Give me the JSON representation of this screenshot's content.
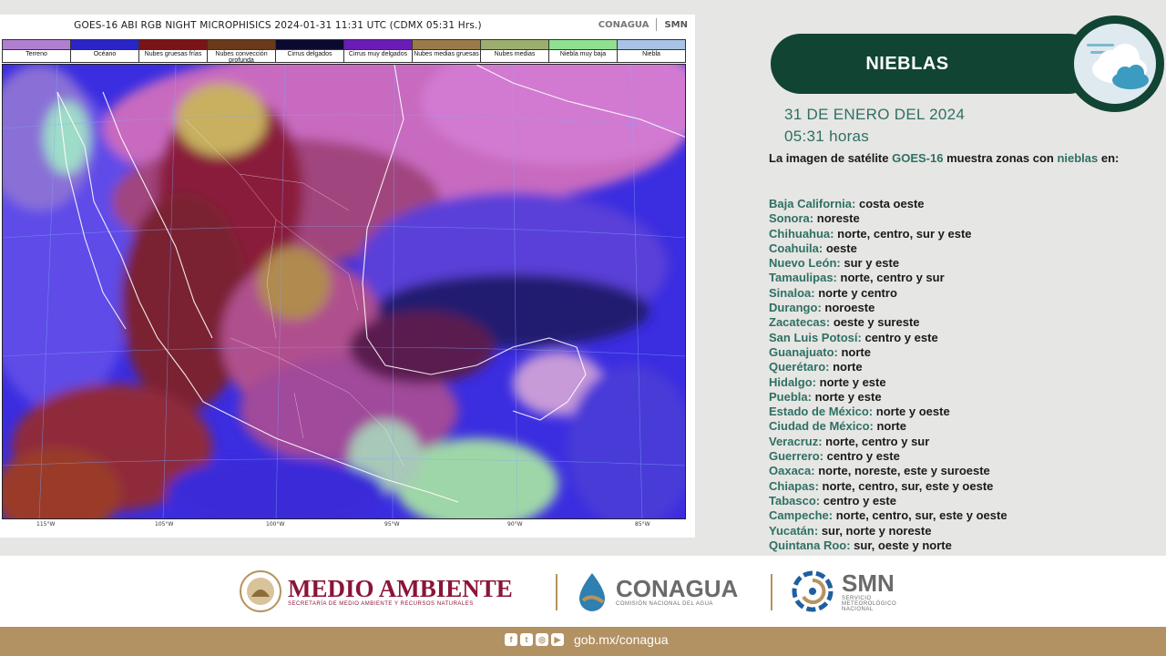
{
  "satellite": {
    "title": "GOES-16 ABI RGB NIGHT MICROPHISICS 2024-01-31 11:31 UTC (CDMX  05:31 Hrs.)",
    "logo_conagua": "CONAGUA",
    "logo_smn": "SMN",
    "legend": [
      {
        "label": "Terreno",
        "color": "#b07fd0"
      },
      {
        "label": "Océano",
        "color": "#2a24c9"
      },
      {
        "label": "Nubes gruesas frías",
        "color": "#7a1417"
      },
      {
        "label": "Nubes convección profunda",
        "color": "#6a3a1a"
      },
      {
        "label": "Cirrus delgados",
        "color": "#0a0a30"
      },
      {
        "label": "Cirrus muy delgados",
        "color": "#6b1cb8"
      },
      {
        "label": "Nubes medias gruesas",
        "color": "#9c7a48"
      },
      {
        "label": "Nubes medias",
        "color": "#9cae6e"
      },
      {
        "label": "Niebla muy baja",
        "color": "#8fe08f"
      },
      {
        "label": "Niebla",
        "color": "#a9c3e6"
      }
    ],
    "longitudes": [
      "115°W",
      "105°W",
      "100°W",
      "95°W",
      "90°W",
      "85°W"
    ]
  },
  "panel": {
    "title": "NIEBLAS",
    "weather_icon": "fog-cloud-icon",
    "date": "31 DE ENERO DEL 2024",
    "time": "05:31 horas",
    "intro_pre": "La imagen de satélite ",
    "intro_sat": "GOES-16",
    "intro_mid": " muestra zonas con ",
    "intro_kw": "nieblas",
    "intro_post": " en:",
    "states": [
      {
        "name": "Baja California:",
        "areas": "costa oeste"
      },
      {
        "name": "Sonora:",
        "areas": "noreste"
      },
      {
        "name": "Chihuahua:",
        "areas": "norte, centro, sur y este"
      },
      {
        "name": "Coahuila:",
        "areas": "oeste"
      },
      {
        "name": "Nuevo León:",
        "areas": "sur y este"
      },
      {
        "name": "Tamaulipas:",
        "areas": "norte, centro y sur"
      },
      {
        "name": "Sinaloa:",
        "areas": "norte y centro"
      },
      {
        "name": "Durango:",
        "areas": "noroeste"
      },
      {
        "name": "Zacatecas:",
        "areas": "oeste y sureste"
      },
      {
        "name": "San Luis Potosí:",
        "areas": "centro y este"
      },
      {
        "name": "Guanajuato:",
        "areas": "norte"
      },
      {
        "name": "Querétaro:",
        "areas": "norte"
      },
      {
        "name": "Hidalgo:",
        "areas": "norte y este"
      },
      {
        "name": "Puebla:",
        "areas": "norte y este"
      },
      {
        "name": "Estado de México:",
        "areas": "norte y oeste"
      },
      {
        "name": "Ciudad de México:",
        "areas": "norte"
      },
      {
        "name": "Veracruz:",
        "areas": "norte, centro y sur"
      },
      {
        "name": "Guerrero:",
        "areas": "centro  y este"
      },
      {
        "name": "Oaxaca:",
        "areas": "norte, noreste, este y suroeste"
      },
      {
        "name": "Chiapas:",
        "areas": "norte, centro, sur, este y oeste"
      },
      {
        "name": "Tabasco:",
        "areas": "centro y este"
      },
      {
        "name": "Campeche:",
        "areas": "norte, centro, sur, este y oeste"
      },
      {
        "name": "Yucatán:",
        "areas": "sur, norte y noreste"
      },
      {
        "name": "Quintana Roo:",
        "areas": "sur, oeste y norte"
      }
    ]
  },
  "footer": {
    "semarnat_name": "MEDIO AMBIENTE",
    "semarnat_sub": "SECRETARÍA DE MEDIO AMBIENTE Y RECURSOS NATURALES",
    "conagua_name": "CONAGUA",
    "conagua_sub": "COMISIÓN NACIONAL DEL AGUA",
    "smn_name": "SMN",
    "smn_sub1": "SERVICIO",
    "smn_sub2": "METEOROLÓGICO",
    "smn_sub3": "NACIONAL",
    "url": "gob.mx/conagua",
    "social_icons": [
      "facebook-icon",
      "twitter-icon",
      "instagram-icon",
      "youtube-icon"
    ]
  },
  "colors": {
    "dark_green": "#114433",
    "teal_text": "#2e7063",
    "maroon": "#8a1538",
    "gold": "#b29163"
  }
}
